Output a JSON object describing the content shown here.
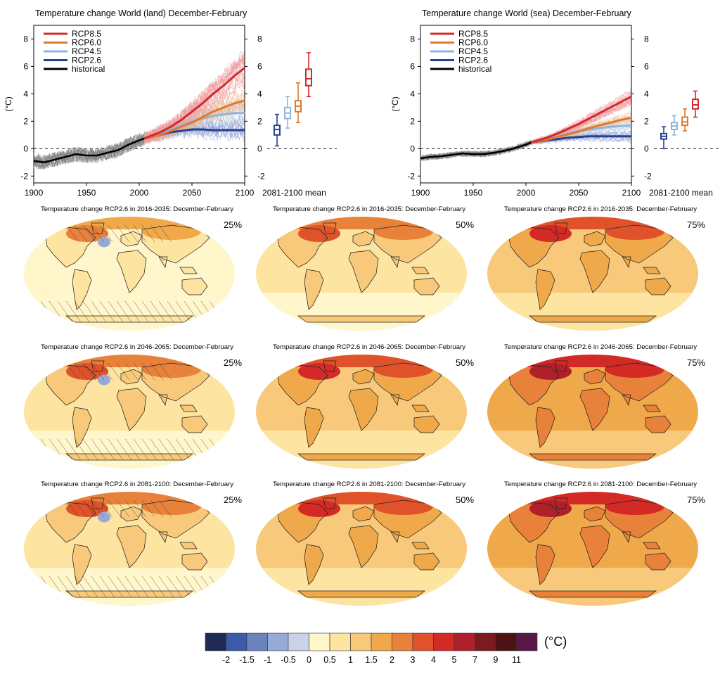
{
  "chart_data": [
    {
      "type": "line",
      "title": "Temperature change World (land) December-February",
      "ylabel": "(°C)",
      "x_range": [
        1900,
        2100
      ],
      "y_range": [
        -2.5,
        9
      ],
      "x_ticks": [
        "1900",
        "1950",
        "2000",
        "2050",
        "2100"
      ],
      "y_ticks": [
        "-2",
        "0",
        "2",
        "4",
        "6",
        "8"
      ],
      "right_y_ticks": [
        "-2",
        "0",
        "2",
        "4",
        "6",
        "8"
      ],
      "legend": [
        "RCP8.5",
        "RCP6.0",
        "RCP4.5",
        "RCP2.6",
        "historical"
      ],
      "legend_position": "top-left",
      "box_label": "2081-2100 mean",
      "series": [
        {
          "name": "historical",
          "color": "#000000",
          "x": [
            1900,
            1910,
            1920,
            1930,
            1940,
            1950,
            1960,
            1970,
            1980,
            1990,
            2000,
            2005
          ],
          "y": [
            -0.9,
            -1.0,
            -0.8,
            -0.6,
            -0.4,
            -0.5,
            -0.5,
            -0.3,
            -0.1,
            0.3,
            0.6,
            0.75
          ]
        },
        {
          "name": "RCP2.6",
          "color": "#26418f",
          "x": [
            2005,
            2020,
            2030,
            2040,
            2050,
            2060,
            2070,
            2080,
            2090,
            2100
          ],
          "y": [
            0.75,
            1.0,
            1.2,
            1.3,
            1.4,
            1.4,
            1.35,
            1.35,
            1.35,
            1.35
          ]
        },
        {
          "name": "RCP4.5",
          "color": "#8fb5d9",
          "x": [
            2005,
            2020,
            2030,
            2040,
            2050,
            2060,
            2070,
            2080,
            2090,
            2100
          ],
          "y": [
            0.75,
            1.1,
            1.4,
            1.7,
            2.0,
            2.2,
            2.4,
            2.5,
            2.6,
            2.6
          ]
        },
        {
          "name": "RCP6.0",
          "color": "#e0782f",
          "x": [
            2005,
            2020,
            2030,
            2040,
            2050,
            2060,
            2070,
            2080,
            2090,
            2100
          ],
          "y": [
            0.75,
            1.0,
            1.3,
            1.6,
            1.9,
            2.3,
            2.7,
            3.0,
            3.3,
            3.5
          ]
        },
        {
          "name": "RCP8.5",
          "color": "#d02a2e",
          "x": [
            2005,
            2020,
            2030,
            2040,
            2050,
            2060,
            2070,
            2080,
            2090,
            2100
          ],
          "y": [
            0.75,
            1.2,
            1.6,
            2.1,
            2.7,
            3.3,
            4.0,
            4.6,
            5.3,
            5.9
          ]
        }
      ],
      "boxes": [
        {
          "name": "RCP2.6",
          "color": "#26418f",
          "min": 0.2,
          "q1": 1.0,
          "median": 1.4,
          "q3": 1.7,
          "max": 2.5
        },
        {
          "name": "RCP4.5",
          "color": "#8fb5d9",
          "min": 1.5,
          "q1": 2.2,
          "median": 2.6,
          "q3": 3.0,
          "max": 3.8
        },
        {
          "name": "RCP6.0",
          "color": "#e0782f",
          "min": 1.9,
          "q1": 2.7,
          "median": 3.1,
          "q3": 3.5,
          "max": 4.8
        },
        {
          "name": "RCP8.5",
          "color": "#d02a2e",
          "min": 3.8,
          "q1": 4.6,
          "median": 5.1,
          "q3": 5.8,
          "max": 7.0
        }
      ]
    },
    {
      "type": "line",
      "title": "Temperature change World (sea) December-February",
      "ylabel": "(°C)",
      "x_range": [
        1900,
        2100
      ],
      "y_range": [
        -2.5,
        9
      ],
      "x_ticks": [
        "1900",
        "1950",
        "2000",
        "2050",
        "2100"
      ],
      "y_ticks": [
        "-2",
        "0",
        "2",
        "4",
        "6",
        "8"
      ],
      "right_y_ticks": [
        "-2",
        "0",
        "2",
        "4",
        "6",
        "8"
      ],
      "legend": [
        "RCP8.5",
        "RCP6.0",
        "RCP4.5",
        "RCP2.6",
        "historical"
      ],
      "legend_position": "top-left",
      "box_label": "2081-2100 mean",
      "series": [
        {
          "name": "historical",
          "color": "#000000",
          "x": [
            1900,
            1910,
            1920,
            1930,
            1940,
            1950,
            1960,
            1970,
            1980,
            1990,
            2000,
            2005
          ],
          "y": [
            -0.7,
            -0.6,
            -0.55,
            -0.45,
            -0.35,
            -0.4,
            -0.4,
            -0.3,
            -0.15,
            0.05,
            0.3,
            0.45
          ]
        },
        {
          "name": "RCP2.6",
          "color": "#26418f",
          "x": [
            2005,
            2020,
            2030,
            2040,
            2050,
            2060,
            2070,
            2080,
            2090,
            2100
          ],
          "y": [
            0.45,
            0.6,
            0.7,
            0.8,
            0.85,
            0.9,
            0.9,
            0.9,
            0.9,
            0.9
          ]
        },
        {
          "name": "RCP4.5",
          "color": "#8fb5d9",
          "x": [
            2005,
            2020,
            2030,
            2040,
            2050,
            2060,
            2070,
            2080,
            2090,
            2100
          ],
          "y": [
            0.45,
            0.7,
            0.9,
            1.1,
            1.3,
            1.4,
            1.5,
            1.6,
            1.65,
            1.7
          ]
        },
        {
          "name": "RCP6.0",
          "color": "#e0782f",
          "x": [
            2005,
            2020,
            2030,
            2040,
            2050,
            2060,
            2070,
            2080,
            2090,
            2100
          ],
          "y": [
            0.45,
            0.65,
            0.85,
            1.05,
            1.25,
            1.5,
            1.7,
            1.9,
            2.1,
            2.25
          ]
        },
        {
          "name": "RCP8.5",
          "color": "#d02a2e",
          "x": [
            2005,
            2020,
            2030,
            2040,
            2050,
            2060,
            2070,
            2080,
            2090,
            2100
          ],
          "y": [
            0.45,
            0.8,
            1.1,
            1.45,
            1.8,
            2.2,
            2.6,
            3.0,
            3.4,
            3.8
          ]
        }
      ],
      "boxes": [
        {
          "name": "RCP2.6",
          "color": "#26418f",
          "min": 0.0,
          "q1": 0.7,
          "median": 0.9,
          "q3": 1.1,
          "max": 1.6
        },
        {
          "name": "RCP4.5",
          "color": "#8fb5d9",
          "min": 1.0,
          "q1": 1.4,
          "median": 1.65,
          "q3": 1.9,
          "max": 2.4
        },
        {
          "name": "RCP6.0",
          "color": "#e0782f",
          "min": 1.3,
          "q1": 1.7,
          "median": 1.95,
          "q3": 2.3,
          "max": 2.9
        },
        {
          "name": "RCP8.5",
          "color": "#d02a2e",
          "min": 2.3,
          "q1": 2.9,
          "median": 3.2,
          "q3": 3.6,
          "max": 4.2
        }
      ]
    },
    {
      "type": "heatmap",
      "panels": [
        {
          "title": "Temperature change RCP2.6 in 2016-2035: December-February",
          "percentile": "25%"
        },
        {
          "title": "Temperature change RCP2.6 in 2016-2035: December-February",
          "percentile": "50%"
        },
        {
          "title": "Temperature change RCP2.6 in 2016-2035: December-February",
          "percentile": "75%"
        },
        {
          "title": "Temperature change RCP2.6 in 2046-2065: December-February",
          "percentile": "25%"
        },
        {
          "title": "Temperature change RCP2.6 in 2046-2065: December-February",
          "percentile": "50%"
        },
        {
          "title": "Temperature change RCP2.6 in 2046-2065: December-February",
          "percentile": "75%"
        },
        {
          "title": "Temperature change RCP2.6 in 2081-2100: December-February",
          "percentile": "25%"
        },
        {
          "title": "Temperature change RCP2.6 in 2081-2100: December-February",
          "percentile": "50%"
        },
        {
          "title": "Temperature change RCP2.6 in 2081-2100: December-February",
          "percentile": "75%"
        }
      ],
      "colorbar": {
        "unit": "(°C)",
        "labels": [
          "-2",
          "-1.5",
          "-1",
          "-0.5",
          "0",
          "0.5",
          "1",
          "1.5",
          "2",
          "3",
          "4",
          "5",
          "7",
          "9",
          "11"
        ],
        "colors": [
          "#1f2a55",
          "#3c5aa6",
          "#6a83bf",
          "#97aad7",
          "#c8d3ea",
          "#fff6cc",
          "#fde4a1",
          "#f8c97a",
          "#f0a94a",
          "#e8823a",
          "#e0532a",
          "#d42a26",
          "#b0202a",
          "#7c1a22",
          "#4e1214",
          "#5a1848"
        ]
      }
    }
  ]
}
